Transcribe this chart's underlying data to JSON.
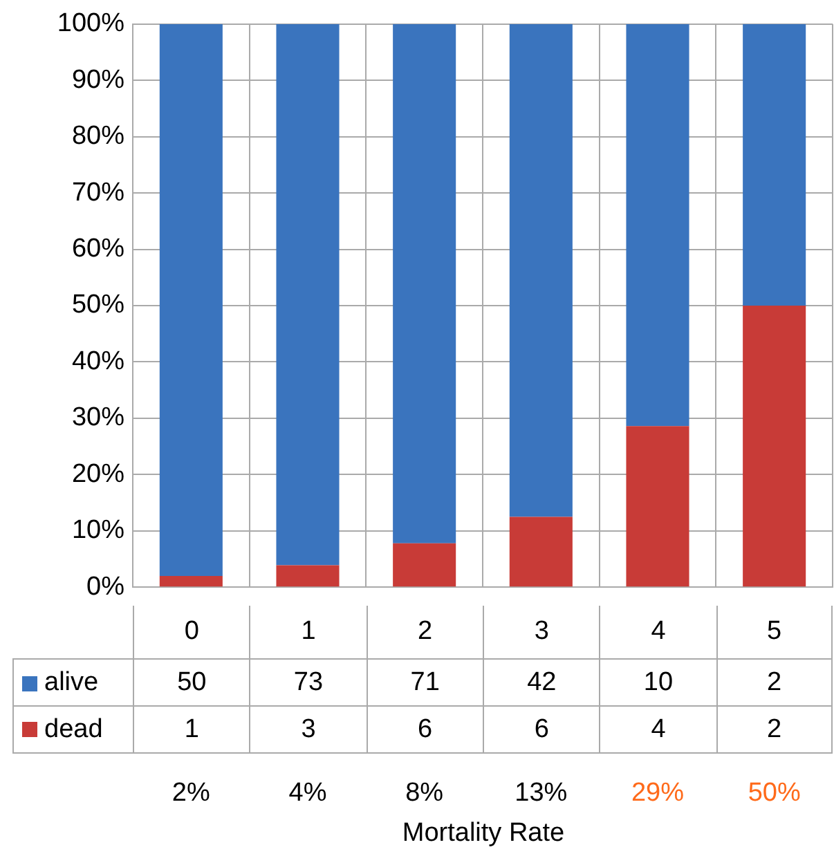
{
  "chart_data": {
    "type": "bar",
    "stacked": true,
    "legend": "bottom",
    "categories": [
      "0",
      "1",
      "2",
      "3",
      "4",
      "5"
    ],
    "series": [
      {
        "name": "dead",
        "color": "#c83b37",
        "values": [
          2.0,
          3.9,
          7.8,
          12.5,
          28.6,
          50.0
        ]
      },
      {
        "name": "alive",
        "color": "#3a74be",
        "values": [
          98.0,
          96.1,
          92.2,
          87.5,
          71.4,
          50.0
        ]
      }
    ],
    "ylim": [
      0,
      100
    ],
    "yticks": [
      {
        "value": 0,
        "label": "0%"
      },
      {
        "value": 10,
        "label": "10%"
      },
      {
        "value": 20,
        "label": "20%"
      },
      {
        "value": 30,
        "label": "30%"
      },
      {
        "value": 40,
        "label": "40%"
      },
      {
        "value": 50,
        "label": "50%"
      },
      {
        "value": 60,
        "label": "60%"
      },
      {
        "value": 70,
        "label": "70%"
      },
      {
        "value": 80,
        "label": "80%"
      },
      {
        "value": 90,
        "label": "90%"
      },
      {
        "value": 100,
        "label": "100%"
      }
    ],
    "grid": "y",
    "annotations": [
      "50",
      "73",
      "71",
      "42",
      "10",
      "2",
      "1",
      "3",
      "6",
      "6",
      "4",
      "2",
      "2%",
      "4%",
      "8%",
      "13%",
      "29%",
      "50%",
      "Mortality Rate"
    ]
  }
}
